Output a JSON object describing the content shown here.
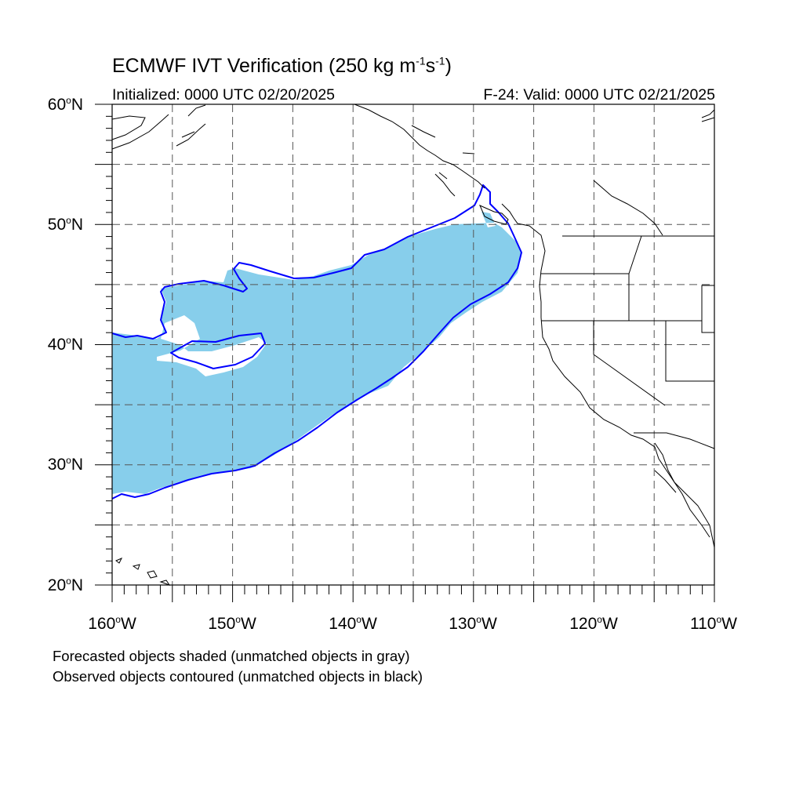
{
  "title": {
    "prefix": "ECMWF IVT Verification (250 kg m",
    "exp1": "-1",
    "mid": "s",
    "exp2": "-1",
    "suffix": ")"
  },
  "initialized": "Initialized: 0000 UTC 02/20/2025",
  "valid": "F-24: Valid: 0000 UTC 02/21/2025",
  "lat_labels": [
    "60",
    "50",
    "40",
    "30",
    "20"
  ],
  "lat_suffix": "N",
  "lon_labels": [
    "160",
    "150",
    "140",
    "130",
    "120",
    "110"
  ],
  "lon_suffix": "W",
  "degree_symbol": "o",
  "notes": {
    "line1": "Forecasted objects shaded (unmatched objects in gray)",
    "line2": "Observed objects contoured (unmatched objects in black)"
  },
  "map": {
    "lon_range": [
      -160,
      -110
    ],
    "lat_range": [
      20,
      60
    ],
    "gridline_lons": [
      -155,
      -150,
      -145,
      -140,
      -135,
      -130,
      -125,
      -120,
      -115
    ],
    "gridline_lats": [
      25,
      30,
      35,
      40,
      45,
      50,
      55
    ],
    "colors": {
      "forecast_fill": "#87ceeb",
      "observed_contour": "#0000ff",
      "coastline": "#000000",
      "gridline": "#555555"
    }
  }
}
